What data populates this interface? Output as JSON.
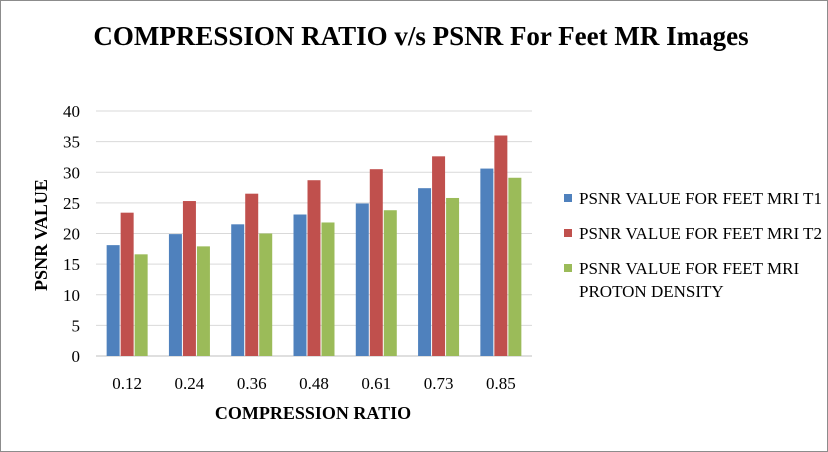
{
  "chart_data": {
    "type": "bar",
    "title": "COMPRESSION RATIO v/s PSNR For Feet MR Images",
    "xlabel": "COMPRESSION RATIO",
    "ylabel": "PSNR VALUE",
    "categories": [
      "0.12",
      "0.24",
      "0.36",
      "0.48",
      "0.61",
      "0.73",
      "0.85"
    ],
    "ylim": [
      0,
      40
    ],
    "yticks": [
      0,
      5,
      10,
      15,
      20,
      25,
      30,
      35,
      40
    ],
    "grid": true,
    "legend_position": "right",
    "series": [
      {
        "name": "PSNR VALUE FOR FEET MRI T1",
        "color": "#4f81bd",
        "values": [
          18.1,
          19.9,
          21.5,
          23.1,
          24.9,
          27.4,
          30.6
        ]
      },
      {
        "name": "PSNR VALUE FOR FEET MRI T2",
        "color": "#c0504d",
        "values": [
          23.4,
          25.3,
          26.5,
          28.7,
          30.5,
          32.6,
          36.0
        ]
      },
      {
        "name": "PSNR VALUE FOR FEET MRI PROTON DENSITY",
        "color": "#9bbb59",
        "values": [
          16.6,
          17.9,
          20.0,
          21.8,
          23.8,
          25.8,
          29.1
        ]
      }
    ]
  }
}
